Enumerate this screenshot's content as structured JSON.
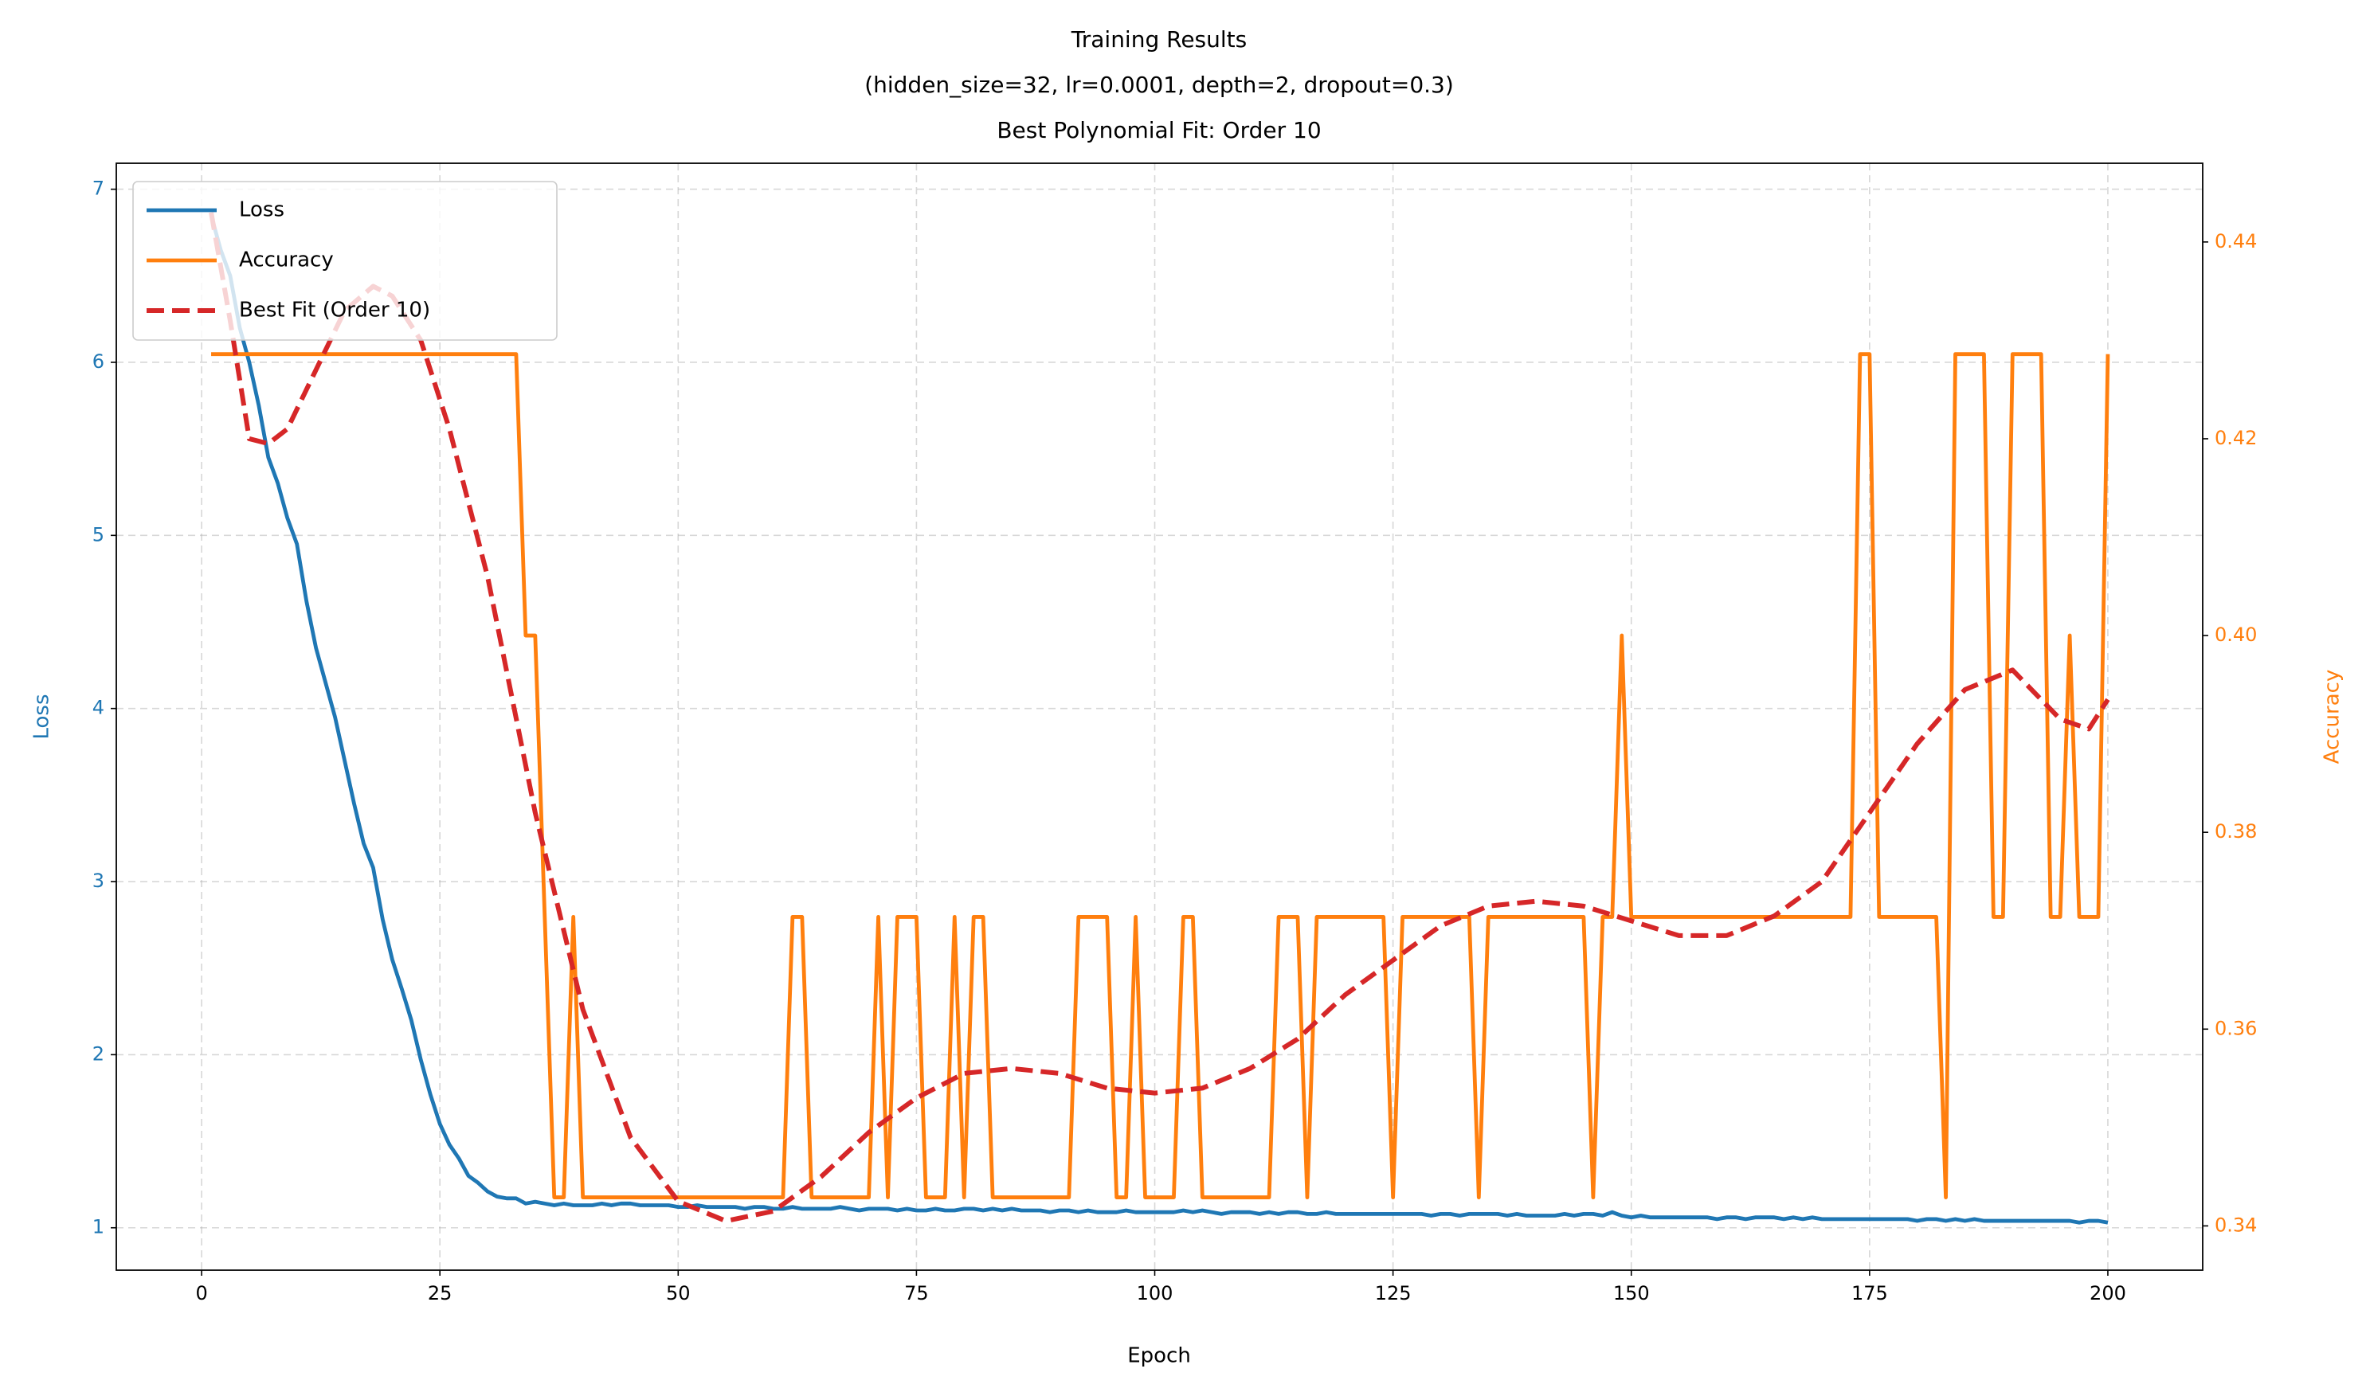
{
  "chart_data": {
    "type": "line",
    "title_lines": [
      "Training Results",
      "(hidden_size=32, lr=0.0001, depth=2, dropout=0.3)",
      "Best Polynomial Fit: Order 10"
    ],
    "xlabel": "Epoch",
    "ylabel": "Loss",
    "y2label": "Accuracy",
    "xlim": [
      -8.95,
      209.95
    ],
    "xticks": [
      0,
      25,
      50,
      75,
      100,
      125,
      150,
      175,
      200
    ],
    "ylim": [
      0.755,
      7.15
    ],
    "yticks": [
      1,
      2,
      3,
      4,
      5,
      6,
      7
    ],
    "y2lim": [
      0.3355,
      0.448
    ],
    "y2ticks": [
      0.34,
      0.36,
      0.38,
      {
        "value": 0.4,
        "label": "0.40"
      },
      0.42,
      0.44
    ],
    "grid": true,
    "legend": "upper left",
    "series": [
      {
        "name": "Loss",
        "color": "#1f77b4",
        "style": "solid",
        "axis": "y",
        "x": [
          1,
          2,
          3,
          4,
          5,
          6,
          7,
          8,
          9,
          10,
          11,
          12,
          13,
          14,
          15,
          16,
          17,
          18,
          19,
          20,
          21,
          22,
          23,
          24,
          25,
          26,
          27,
          28,
          29,
          30,
          31,
          32,
          33,
          34,
          35,
          36,
          37,
          38,
          39,
          40,
          41,
          42,
          43,
          44,
          45,
          46,
          47,
          48,
          49,
          50,
          51,
          52,
          53,
          54,
          55,
          56,
          57,
          58,
          59,
          60,
          61,
          62,
          63,
          64,
          65,
          66,
          67,
          68,
          69,
          70,
          71,
          72,
          73,
          74,
          75,
          76,
          77,
          78,
          79,
          80,
          81,
          82,
          83,
          84,
          85,
          86,
          87,
          88,
          89,
          90,
          91,
          92,
          93,
          94,
          95,
          96,
          97,
          98,
          99,
          100,
          101,
          102,
          103,
          104,
          105,
          106,
          107,
          108,
          109,
          110,
          111,
          112,
          113,
          114,
          115,
          116,
          117,
          118,
          119,
          120,
          121,
          122,
          123,
          124,
          125,
          126,
          127,
          128,
          129,
          130,
          131,
          132,
          133,
          134,
          135,
          136,
          137,
          138,
          139,
          140,
          141,
          142,
          143,
          144,
          145,
          146,
          147,
          148,
          149,
          150,
          151,
          152,
          153,
          154,
          155,
          156,
          157,
          158,
          159,
          160,
          161,
          162,
          163,
          164,
          165,
          166,
          167,
          168,
          169,
          170,
          171,
          172,
          173,
          174,
          175,
          176,
          177,
          178,
          179,
          180,
          181,
          182,
          183,
          184,
          185,
          186,
          187,
          188,
          189,
          190,
          191,
          192,
          193,
          194,
          195,
          196,
          197,
          198,
          199,
          200
        ],
        "values": [
          6.85,
          6.65,
          6.5,
          6.2,
          6.0,
          5.75,
          5.45,
          5.3,
          5.1,
          4.95,
          4.62,
          4.35,
          4.15,
          3.95,
          3.7,
          3.45,
          3.22,
          3.08,
          2.78,
          2.55,
          2.38,
          2.2,
          1.97,
          1.77,
          1.6,
          1.48,
          1.4,
          1.3,
          1.26,
          1.21,
          1.18,
          1.17,
          1.17,
          1.14,
          1.15,
          1.14,
          1.13,
          1.14,
          1.13,
          1.13,
          1.13,
          1.14,
          1.13,
          1.14,
          1.14,
          1.13,
          1.13,
          1.13,
          1.13,
          1.12,
          1.12,
          1.13,
          1.12,
          1.12,
          1.12,
          1.12,
          1.11,
          1.12,
          1.12,
          1.11,
          1.11,
          1.12,
          1.11,
          1.11,
          1.11,
          1.11,
          1.12,
          1.11,
          1.1,
          1.11,
          1.11,
          1.11,
          1.1,
          1.11,
          1.1,
          1.1,
          1.11,
          1.1,
          1.1,
          1.11,
          1.11,
          1.1,
          1.11,
          1.1,
          1.11,
          1.1,
          1.1,
          1.1,
          1.09,
          1.1,
          1.1,
          1.09,
          1.1,
          1.09,
          1.09,
          1.09,
          1.1,
          1.09,
          1.09,
          1.09,
          1.09,
          1.09,
          1.1,
          1.09,
          1.1,
          1.09,
          1.08,
          1.09,
          1.09,
          1.09,
          1.08,
          1.09,
          1.08,
          1.09,
          1.09,
          1.08,
          1.08,
          1.09,
          1.08,
          1.08,
          1.08,
          1.08,
          1.08,
          1.08,
          1.08,
          1.08,
          1.08,
          1.08,
          1.07,
          1.08,
          1.08,
          1.07,
          1.08,
          1.08,
          1.08,
          1.08,
          1.07,
          1.08,
          1.07,
          1.07,
          1.07,
          1.07,
          1.08,
          1.07,
          1.08,
          1.08,
          1.07,
          1.09,
          1.07,
          1.06,
          1.07,
          1.06,
          1.06,
          1.06,
          1.06,
          1.06,
          1.06,
          1.06,
          1.05,
          1.06,
          1.06,
          1.05,
          1.06,
          1.06,
          1.06,
          1.05,
          1.06,
          1.05,
          1.06,
          1.05,
          1.05,
          1.05,
          1.05,
          1.05,
          1.05,
          1.05,
          1.05,
          1.05,
          1.05,
          1.04,
          1.05,
          1.05,
          1.04,
          1.05,
          1.04,
          1.05,
          1.04,
          1.04,
          1.04,
          1.04,
          1.04,
          1.04,
          1.04,
          1.04,
          1.04,
          1.04,
          1.03,
          1.04,
          1.04,
          1.03
        ]
      },
      {
        "name": "Accuracy",
        "color": "#ff7f0e",
        "style": "solid",
        "axis": "y2",
        "x": [
          1,
          2,
          3,
          4,
          5,
          6,
          7,
          8,
          9,
          10,
          11,
          12,
          13,
          14,
          15,
          16,
          17,
          18,
          19,
          20,
          21,
          22,
          23,
          24,
          25,
          26,
          27,
          28,
          29,
          30,
          31,
          32,
          33,
          34,
          35,
          36,
          37,
          38,
          39,
          40,
          41,
          42,
          43,
          44,
          45,
          46,
          47,
          48,
          49,
          50,
          51,
          52,
          53,
          54,
          55,
          56,
          57,
          58,
          59,
          60,
          61,
          62,
          63,
          64,
          65,
          66,
          67,
          68,
          69,
          70,
          71,
          72,
          73,
          74,
          75,
          76,
          77,
          78,
          79,
          80,
          81,
          82,
          83,
          84,
          85,
          86,
          87,
          88,
          89,
          90,
          91,
          92,
          93,
          94,
          95,
          96,
          97,
          98,
          99,
          100,
          101,
          102,
          103,
          104,
          105,
          106,
          107,
          108,
          109,
          110,
          111,
          112,
          113,
          114,
          115,
          116,
          117,
          118,
          119,
          120,
          121,
          122,
          123,
          124,
          125,
          126,
          127,
          128,
          129,
          130,
          131,
          132,
          133,
          134,
          135,
          136,
          137,
          138,
          139,
          140,
          141,
          142,
          143,
          144,
          145,
          146,
          147,
          148,
          149,
          150,
          151,
          152,
          153,
          154,
          155,
          156,
          157,
          158,
          159,
          160,
          161,
          162,
          163,
          164,
          165,
          166,
          167,
          168,
          169,
          170,
          171,
          172,
          173,
          174,
          175,
          176,
          177,
          178,
          179,
          180,
          181,
          182,
          183,
          184,
          185,
          186,
          187,
          188,
          189,
          190,
          191,
          192,
          193,
          194,
          195,
          196,
          197,
          198,
          199,
          200
        ],
        "values": [
          0.4286,
          0.4286,
          0.4286,
          0.4286,
          0.4286,
          0.4286,
          0.4286,
          0.4286,
          0.4286,
          0.4286,
          0.4286,
          0.4286,
          0.4286,
          0.4286,
          0.4286,
          0.4286,
          0.4286,
          0.4286,
          0.4286,
          0.4286,
          0.4286,
          0.4286,
          0.4286,
          0.4286,
          0.4286,
          0.4286,
          0.4286,
          0.4286,
          0.4286,
          0.4286,
          0.4286,
          0.4286,
          0.4286,
          0.4,
          0.4,
          0.3714,
          0.3429,
          0.3429,
          0.3714,
          0.3429,
          0.3429,
          0.3429,
          0.3429,
          0.3429,
          0.3429,
          0.3429,
          0.3429,
          0.3429,
          0.3429,
          0.3429,
          0.3429,
          0.3429,
          0.3429,
          0.3429,
          0.3429,
          0.3429,
          0.3429,
          0.3429,
          0.3429,
          0.3429,
          0.3429,
          0.3714,
          0.3714,
          0.3429,
          0.3429,
          0.3429,
          0.3429,
          0.3429,
          0.3429,
          0.3429,
          0.3714,
          0.3429,
          0.3714,
          0.3714,
          0.3714,
          0.3429,
          0.3429,
          0.3429,
          0.3714,
          0.3429,
          0.3714,
          0.3714,
          0.3429,
          0.3429,
          0.3429,
          0.3429,
          0.3429,
          0.3429,
          0.3429,
          0.3429,
          0.3429,
          0.3714,
          0.3714,
          0.3714,
          0.3714,
          0.3429,
          0.3429,
          0.3714,
          0.3429,
          0.3429,
          0.3429,
          0.3429,
          0.3714,
          0.3714,
          0.3429,
          0.3429,
          0.3429,
          0.3429,
          0.3429,
          0.3429,
          0.3429,
          0.3429,
          0.3714,
          0.3714,
          0.3714,
          0.3429,
          0.3714,
          0.3714,
          0.3714,
          0.3714,
          0.3714,
          0.3714,
          0.3714,
          0.3714,
          0.3429,
          0.3714,
          0.3714,
          0.3714,
          0.3714,
          0.3714,
          0.3714,
          0.3714,
          0.3714,
          0.3429,
          0.3714,
          0.3714,
          0.3714,
          0.3714,
          0.3714,
          0.3714,
          0.3714,
          0.3714,
          0.3714,
          0.3714,
          0.3714,
          0.3429,
          0.3714,
          0.3714,
          0.4,
          0.3714,
          0.3714,
          0.3714,
          0.3714,
          0.3714,
          0.3714,
          0.3714,
          0.3714,
          0.3714,
          0.3714,
          0.3714,
          0.3714,
          0.3714,
          0.3714,
          0.3714,
          0.3714,
          0.3714,
          0.3714,
          0.3714,
          0.3714,
          0.3714,
          0.3714,
          0.3714,
          0.3714,
          0.4286,
          0.4286,
          0.3714,
          0.3714,
          0.3714,
          0.3714,
          0.3714,
          0.3714,
          0.3714,
          0.3429,
          0.4286,
          0.4286,
          0.4286,
          0.4286,
          0.3714,
          0.3714,
          0.4286,
          0.4286,
          0.4286,
          0.4286,
          0.3714,
          0.3714,
          0.4,
          0.3714,
          0.3714,
          0.3714,
          0.4286
        ]
      },
      {
        "name": "Best Fit (Order 10)",
        "color": "#d62728",
        "style": "dashed",
        "axis": "y2",
        "x": [
          1,
          3,
          5,
          7,
          9,
          12,
          15,
          18,
          20,
          23,
          26,
          30,
          35,
          40,
          45,
          50,
          55,
          60,
          65,
          70,
          75,
          80,
          85,
          90,
          95,
          100,
          105,
          110,
          115,
          120,
          125,
          130,
          135,
          140,
          145,
          150,
          155,
          160,
          165,
          170,
          175,
          180,
          185,
          190,
          195,
          198,
          200
        ],
        "values": [
          0.443,
          0.432,
          0.42,
          0.4195,
          0.421,
          0.427,
          0.433,
          0.4355,
          0.4345,
          0.43,
          0.421,
          0.406,
          0.382,
          0.362,
          0.349,
          0.3425,
          0.3405,
          0.3415,
          0.345,
          0.3495,
          0.353,
          0.3555,
          0.356,
          0.3555,
          0.354,
          0.3535,
          0.354,
          0.356,
          0.359,
          0.3635,
          0.367,
          0.3705,
          0.3725,
          0.373,
          0.3725,
          0.371,
          0.3695,
          0.3695,
          0.3715,
          0.375,
          0.382,
          0.389,
          0.3945,
          0.3965,
          0.3915,
          0.3905,
          0.3935
        ]
      }
    ]
  }
}
